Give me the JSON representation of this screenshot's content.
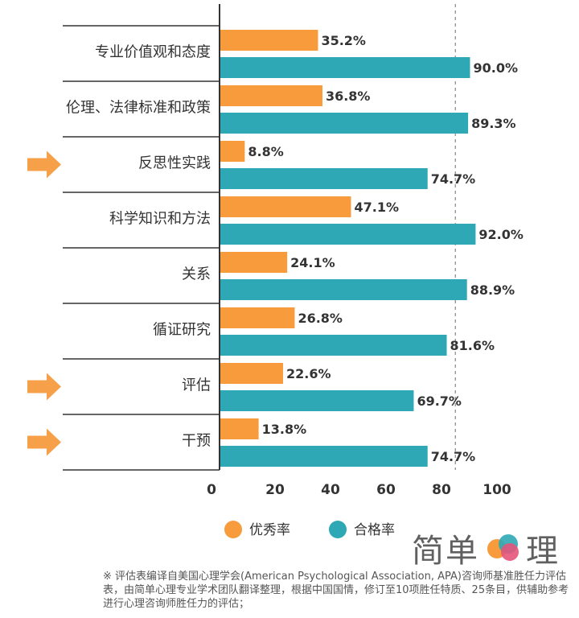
{
  "chart_data": {
    "type": "bar",
    "orientation": "horizontal",
    "categories": [
      "专业价值观和态度",
      "伦理、法律标准和政策",
      "反思性实践",
      "科学知识和方法",
      "关系",
      "循证研究",
      "评估",
      "干预"
    ],
    "series": [
      {
        "name": "优秀率",
        "color": "#F79B3C",
        "values": [
          35.2,
          36.8,
          8.8,
          47.1,
          24.1,
          26.8,
          22.6,
          13.8
        ],
        "labels": [
          "35.2%",
          "36.8%",
          "8.8%",
          "47.1%",
          "24.1%",
          "26.8%",
          "22.6%",
          "13.8%"
        ]
      },
      {
        "name": "合格率",
        "color": "#2EA8B5",
        "values": [
          90.0,
          89.3,
          74.7,
          92.0,
          88.9,
          81.6,
          69.7,
          74.7
        ],
        "labels": [
          "90.0%",
          "89.3%",
          "74.7%",
          "92.0%",
          "88.9%",
          "81.6%",
          "69.7%",
          "74.7%"
        ]
      }
    ],
    "xlim": [
      0,
      100
    ],
    "xticks": [
      "0",
      "20",
      "40",
      "60",
      "80",
      "100"
    ],
    "reference_line": 85,
    "highlighted_categories": [
      "反思性实践",
      "评估",
      "干预"
    ],
    "legend_position": "bottom-center"
  },
  "colors": {
    "orange": "#F79B3C",
    "teal": "#2EA8B5",
    "text": "#333333",
    "grid": "#333333",
    "arrow": "#F7A04A"
  },
  "brand": {
    "left": "简单",
    "right": "理"
  },
  "footnote": "※ 评估表编译自美国心理学会(American Psychological Association, APA)咨询师基准胜任力评估表，由简单心理专业学术团队翻译整理，根据中国国情，修订至10项胜任特质、25条目，供辅助参考进行心理咨询师胜任力的评估；"
}
